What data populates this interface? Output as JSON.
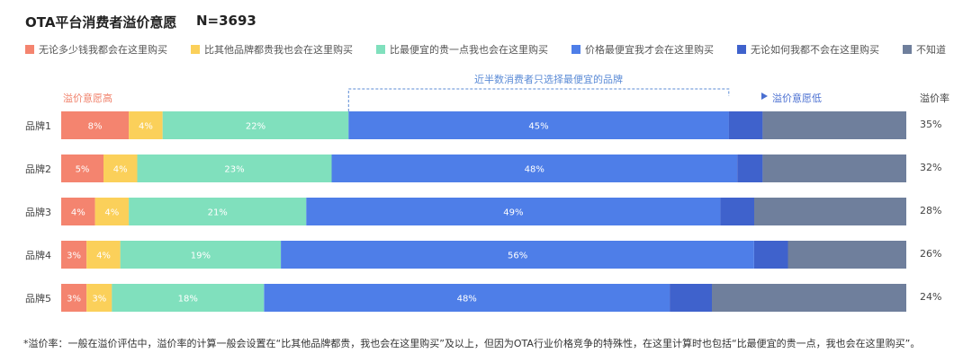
{
  "title": "OTA平台消费者溢价意愿",
  "n_label": "N=3693",
  "annotations": {
    "high": "溢价意愿高",
    "low": "溢价意愿低",
    "bracket": "近半数消费者只选择最便宜的品牌",
    "rate_header": "溢价率"
  },
  "footnote": "*溢价率：一般在溢价评估中，溢价率的计算一般会设置在“比其他品牌都贵，我也会在这里购买”及以上，但因为OTA行业价格竞争的特殊性，在这里计算时也包括“比最便宜的贵一点，我也会在这里购买”。",
  "colors": {
    "high": "#f0806a",
    "low": "#4a6fd1",
    "bracket": "#5b8bd6"
  },
  "chart_data": {
    "type": "bar",
    "orientation": "horizontal",
    "stacked": true,
    "percent_stacked": true,
    "title": "OTA平台消费者溢价意愿",
    "categories": [
      "品牌1",
      "品牌2",
      "品牌3",
      "品牌4",
      "品牌5"
    ],
    "series": [
      {
        "name": "无论多少钱我都会在这里购买",
        "color": "#f4846f",
        "values": [
          8,
          5,
          4,
          3,
          3
        ],
        "labels": [
          "8%",
          "5%",
          "4%",
          "3%",
          "3%"
        ]
      },
      {
        "name": "比其他品牌都贵我也会在这里购买",
        "color": "#fbd05a",
        "values": [
          4,
          4,
          4,
          4,
          3
        ],
        "labels": [
          "4%",
          "4%",
          "4%",
          "4%",
          "3%"
        ]
      },
      {
        "name": "比最便宜的贵一点我也会在这里购买",
        "color": "#80e0bd",
        "values": [
          22,
          23,
          21,
          19,
          18
        ],
        "labels": [
          "22%",
          "23%",
          "21%",
          "19%",
          "18%"
        ]
      },
      {
        "name": "价格最便宜我才会在这里购买",
        "color": "#4e7ee8",
        "values": [
          45,
          48,
          49,
          56,
          48
        ],
        "labels": [
          "45%",
          "48%",
          "49%",
          "56%",
          "48%"
        ]
      },
      {
        "name": "无论如何我都不会在这里购买",
        "color": "#3f62cc",
        "values": [
          4,
          3,
          4,
          4,
          5
        ],
        "labels": [
          "",
          "",
          "",
          "",
          ""
        ]
      },
      {
        "name": "不知道",
        "color": "#6f7f9c",
        "values": [
          17,
          17,
          18,
          14,
          23
        ],
        "labels": [
          "",
          "",
          "",
          "",
          ""
        ]
      }
    ],
    "premium_rates": [
      "35%",
      "32%",
      "28%",
      "26%",
      "24%"
    ],
    "xlim": [
      0,
      100
    ],
    "legend_position": "top"
  }
}
